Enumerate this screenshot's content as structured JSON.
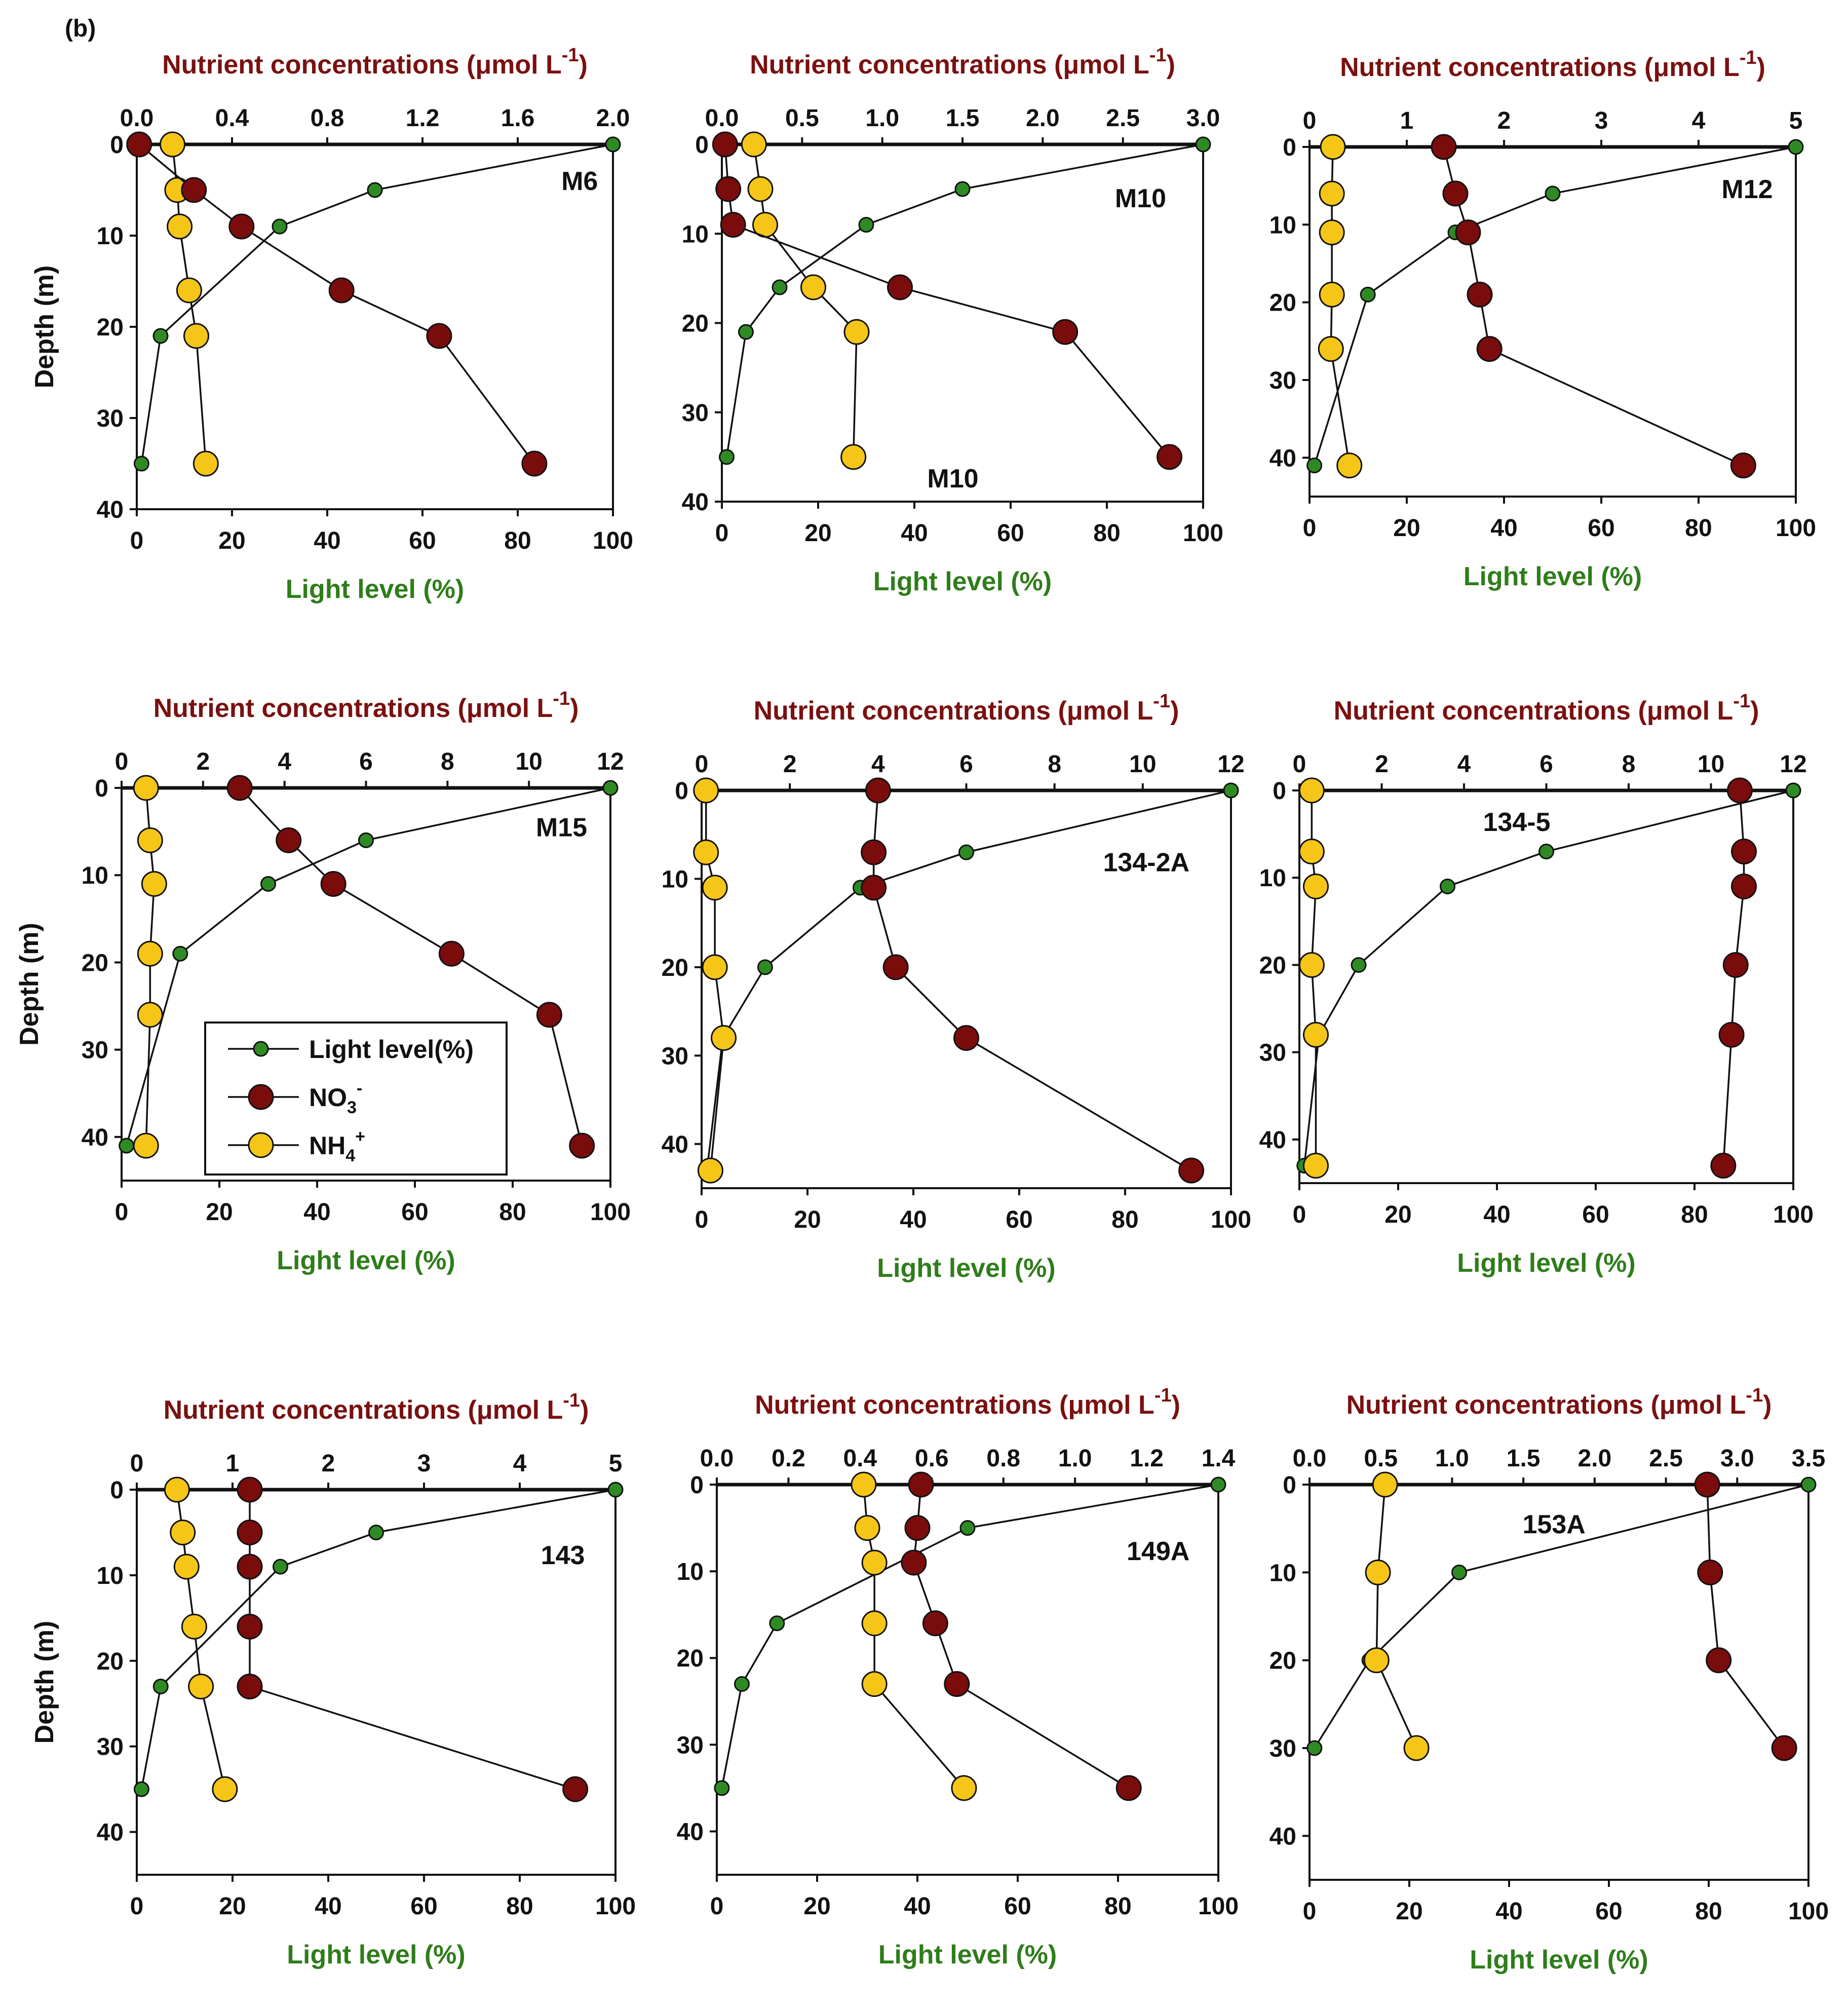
{
  "figure_label": "(b)",
  "colors": {
    "light": "#2e8b24",
    "no3": "#7a0c0c",
    "nh4": "#f5c518",
    "xlabel": "#2e7d1a",
    "toplabel": "#7a1010"
  },
  "legend": {
    "light": "Light level(%)",
    "no3": "NO",
    "no3_sub": "3",
    "no3_sup": "-",
    "nh4": "NH",
    "nh4_sub": "4",
    "nh4_sup": "+"
  },
  "chart_data": [
    {
      "type": "line",
      "station": "M6",
      "ylabel": "Depth (m)",
      "xlabel": "Light level (%)",
      "top_label": "Nutrient concentrations (μmol L",
      "top_label_sup": "-1",
      "top_label_end": ")",
      "light_xlim": [
        0,
        100
      ],
      "light_ticks": [
        0,
        20,
        40,
        60,
        80,
        100
      ],
      "nut_xlim": [
        0,
        2.0
      ],
      "nut_ticks": [
        "0.0",
        "0.4",
        "0.8",
        "1.2",
        "1.6",
        "2.0"
      ],
      "ylim": [
        0,
        40
      ],
      "y_ticks": [
        0,
        10,
        20,
        30,
        40
      ],
      "light": {
        "depth": [
          0,
          5,
          9,
          21,
          35
        ],
        "value": [
          100,
          50,
          30,
          5,
          1
        ]
      },
      "no3": {
        "depth": [
          0,
          5,
          9,
          16,
          21,
          35
        ],
        "value": [
          0.01,
          0.24,
          0.44,
          0.86,
          1.27,
          1.67
        ]
      },
      "nh4": {
        "depth": [
          0,
          5,
          9,
          16,
          21,
          35
        ],
        "value": [
          0.15,
          0.17,
          0.18,
          0.22,
          0.25,
          0.29
        ]
      }
    },
    {
      "type": "line",
      "station": "M10",
      "station2": "M10",
      "ylabel": "",
      "xlabel": "Light level (%)",
      "top_label": "Nutrient concentrations (μmol L",
      "top_label_sup": "-1",
      "top_label_end": ")",
      "light_xlim": [
        0,
        100
      ],
      "light_ticks": [
        0,
        20,
        40,
        60,
        80,
        100
      ],
      "nut_xlim": [
        0,
        3.0
      ],
      "nut_ticks": [
        "0.0",
        "0.5",
        "1.0",
        "1.5",
        "2.0",
        "2.5",
        "3.0"
      ],
      "ylim": [
        0,
        40
      ],
      "y_ticks": [
        0,
        10,
        20,
        30,
        40
      ],
      "light": {
        "depth": [
          0,
          5,
          9,
          16,
          21,
          35
        ],
        "value": [
          100,
          50,
          30,
          12,
          5,
          1
        ]
      },
      "no3": {
        "depth": [
          0,
          5,
          9,
          16,
          21,
          35
        ],
        "value": [
          0.02,
          0.04,
          0.07,
          1.11,
          2.14,
          2.79
        ]
      },
      "nh4": {
        "depth": [
          0,
          5,
          9,
          16,
          21,
          35
        ],
        "value": [
          0.2,
          0.24,
          0.27,
          0.57,
          0.84,
          0.82
        ]
      }
    },
    {
      "type": "line",
      "station": "M12",
      "ylabel": "",
      "xlabel": "Light level (%)",
      "top_label": "Nutrient concentrations (μmol L",
      "top_label_sup": "-1",
      "top_label_end": ")",
      "light_xlim": [
        0,
        100
      ],
      "light_ticks": [
        0,
        20,
        40,
        60,
        80,
        100
      ],
      "nut_xlim": [
        0,
        5
      ],
      "nut_ticks": [
        "0",
        "1",
        "2",
        "3",
        "4",
        "5"
      ],
      "ylim": [
        0,
        45
      ],
      "y_ticks": [
        0,
        10,
        20,
        30,
        40
      ],
      "light": {
        "depth": [
          0,
          6,
          11,
          19,
          41
        ],
        "value": [
          100,
          50,
          30,
          12,
          1
        ]
      },
      "no3": {
        "depth": [
          0,
          6,
          11,
          19,
          26,
          41
        ],
        "value": [
          1.38,
          1.5,
          1.63,
          1.75,
          1.85,
          4.46
        ]
      },
      "nh4": {
        "depth": [
          0,
          6,
          11,
          19,
          26,
          41
        ],
        "value": [
          0.24,
          0.23,
          0.23,
          0.23,
          0.22,
          0.41
        ]
      }
    },
    {
      "type": "line",
      "station": "M15",
      "ylabel": "Depth (m)",
      "xlabel": "Light level (%)",
      "top_label": "Nutrient concentrations (μmol L",
      "top_label_sup": "-1",
      "top_label_end": ")",
      "light_xlim": [
        0,
        100
      ],
      "light_ticks": [
        0,
        20,
        40,
        60,
        80,
        100
      ],
      "nut_xlim": [
        0,
        12
      ],
      "nut_ticks": [
        "0",
        "2",
        "4",
        "6",
        "8",
        "10",
        "12"
      ],
      "ylim": [
        0,
        45
      ],
      "y_ticks": [
        0,
        10,
        20,
        30,
        40
      ],
      "light": {
        "depth": [
          0,
          6,
          11,
          19,
          41
        ],
        "value": [
          100,
          50,
          30,
          12,
          1
        ]
      },
      "no3": {
        "depth": [
          0,
          6,
          11,
          19,
          26,
          41
        ],
        "value": [
          2.9,
          4.1,
          5.2,
          8.1,
          10.5,
          11.3
        ]
      },
      "nh4": {
        "depth": [
          0,
          6,
          11,
          19,
          26,
          41
        ],
        "value": [
          0.6,
          0.7,
          0.8,
          0.7,
          0.7,
          0.6
        ]
      },
      "has_legend": true
    },
    {
      "type": "line",
      "station": "134-2A",
      "ylabel": "",
      "xlabel": "Light level (%)",
      "top_label": "Nutrient concentrations (μmol L",
      "top_label_sup": "-1",
      "top_label_end": ")",
      "light_xlim": [
        0,
        100
      ],
      "light_ticks": [
        0,
        20,
        40,
        60,
        80,
        100
      ],
      "nut_xlim": [
        0,
        12
      ],
      "nut_ticks": [
        "0",
        "2",
        "4",
        "6",
        "8",
        "10",
        "12"
      ],
      "ylim": [
        0,
        45
      ],
      "y_ticks": [
        0,
        10,
        20,
        30,
        40
      ],
      "light": {
        "depth": [
          0,
          7,
          11,
          20,
          28,
          43
        ],
        "value": [
          100,
          50,
          30,
          12,
          4,
          1
        ]
      },
      "no3": {
        "depth": [
          0,
          7,
          11,
          20,
          28,
          43
        ],
        "value": [
          4.0,
          3.9,
          3.9,
          4.4,
          6.0,
          11.1
        ]
      },
      "nh4": {
        "depth": [
          0,
          7,
          11,
          20,
          28,
          43
        ],
        "value": [
          0.1,
          0.1,
          0.3,
          0.3,
          0.5,
          0.2
        ]
      }
    },
    {
      "type": "line",
      "station": "134-5",
      "ylabel": "",
      "xlabel": "Light level (%)",
      "top_label": "Nutrient concentrations (μmol L",
      "top_label_sup": "-1",
      "top_label_end": ")",
      "light_xlim": [
        0,
        100
      ],
      "light_ticks": [
        0,
        20,
        40,
        60,
        80,
        100
      ],
      "nut_xlim": [
        0,
        12
      ],
      "nut_ticks": [
        "0",
        "2",
        "4",
        "6",
        "8",
        "10",
        "12"
      ],
      "ylim": [
        0,
        45
      ],
      "y_ticks": [
        0,
        10,
        20,
        30,
        40
      ],
      "light": {
        "depth": [
          0,
          7,
          11,
          20,
          28,
          43
        ],
        "value": [
          100,
          50,
          30,
          12,
          4,
          1
        ]
      },
      "no3": {
        "depth": [
          0,
          7,
          11,
          20,
          28,
          43
        ],
        "value": [
          10.7,
          10.8,
          10.8,
          10.6,
          10.5,
          10.3
        ]
      },
      "nh4": {
        "depth": [
          0,
          7,
          11,
          20,
          28,
          43
        ],
        "value": [
          0.3,
          0.3,
          0.4,
          0.3,
          0.4,
          0.4
        ]
      }
    },
    {
      "type": "line",
      "station": "143",
      "ylabel": "Depth (m)",
      "xlabel": "Light level (%)",
      "top_label": "Nutrient concentrations (μmol L",
      "top_label_sup": "-1",
      "top_label_end": ")",
      "light_xlim": [
        0,
        100
      ],
      "light_ticks": [
        0,
        20,
        40,
        60,
        80,
        100
      ],
      "nut_xlim": [
        0,
        5
      ],
      "nut_ticks": [
        "0",
        "1",
        "2",
        "3",
        "4",
        "5"
      ],
      "ylim": [
        0,
        45
      ],
      "y_ticks": [
        0,
        10,
        20,
        30,
        40
      ],
      "light": {
        "depth": [
          0,
          5,
          9,
          23,
          35
        ],
        "value": [
          100,
          50,
          30,
          5,
          1
        ]
      },
      "no3": {
        "depth": [
          0,
          5,
          9,
          16,
          23,
          35
        ],
        "value": [
          1.18,
          1.18,
          1.18,
          1.18,
          1.18,
          4.58
        ]
      },
      "nh4": {
        "depth": [
          0,
          5,
          9,
          16,
          23,
          35
        ],
        "value": [
          0.42,
          0.48,
          0.52,
          0.6,
          0.67,
          0.92
        ]
      }
    },
    {
      "type": "line",
      "station": "149A",
      "ylabel": "",
      "xlabel": "Light level (%)",
      "top_label": "Nutrient concentrations (μmol L",
      "top_label_sup": "-1",
      "top_label_end": ")",
      "light_xlim": [
        0,
        100
      ],
      "light_ticks": [
        0,
        20,
        40,
        60,
        80,
        100
      ],
      "nut_xlim": [
        0,
        1.4
      ],
      "nut_ticks": [
        "0.0",
        "0.2",
        "0.4",
        "0.6",
        "0.8",
        "1.0",
        "1.2",
        "1.4"
      ],
      "ylim": [
        0,
        45
      ],
      "y_ticks": [
        0,
        10,
        20,
        30,
        40
      ],
      "light": {
        "depth": [
          0,
          5,
          16,
          23,
          35
        ],
        "value": [
          100,
          50,
          12,
          5,
          1
        ]
      },
      "no3": {
        "depth": [
          0,
          5,
          9,
          16,
          23,
          35
        ],
        "value": [
          0.57,
          0.56,
          0.55,
          0.61,
          0.67,
          1.15
        ]
      },
      "nh4": {
        "depth": [
          0,
          5,
          9,
          16,
          23,
          35
        ],
        "value": [
          0.41,
          0.42,
          0.44,
          0.44,
          0.44,
          0.69
        ]
      }
    },
    {
      "type": "line",
      "station": "153A",
      "ylabel": "",
      "xlabel": "Light level (%)",
      "top_label": "Nutrient concentrations (μmol L",
      "top_label_sup": "-1",
      "top_label_end": ")",
      "light_xlim": [
        0,
        100
      ],
      "light_ticks": [
        0,
        20,
        40,
        60,
        80,
        100
      ],
      "nut_xlim": [
        0,
        3.5
      ],
      "nut_ticks": [
        "0.0",
        "0.5",
        "1.0",
        "1.5",
        "2.0",
        "2.5",
        "3.0",
        "3.5"
      ],
      "ylim": [
        0,
        45
      ],
      "y_ticks": [
        0,
        10,
        20,
        30,
        40
      ],
      "light": {
        "depth": [
          0,
          10,
          20,
          30
        ],
        "value": [
          100,
          30,
          12,
          1
        ]
      },
      "no3": {
        "depth": [
          0,
          10,
          20,
          30
        ],
        "value": [
          2.79,
          2.81,
          2.87,
          3.33
        ]
      },
      "nh4": {
        "depth": [
          0,
          10,
          20,
          30
        ],
        "value": [
          0.53,
          0.48,
          0.47,
          0.75
        ]
      }
    }
  ]
}
